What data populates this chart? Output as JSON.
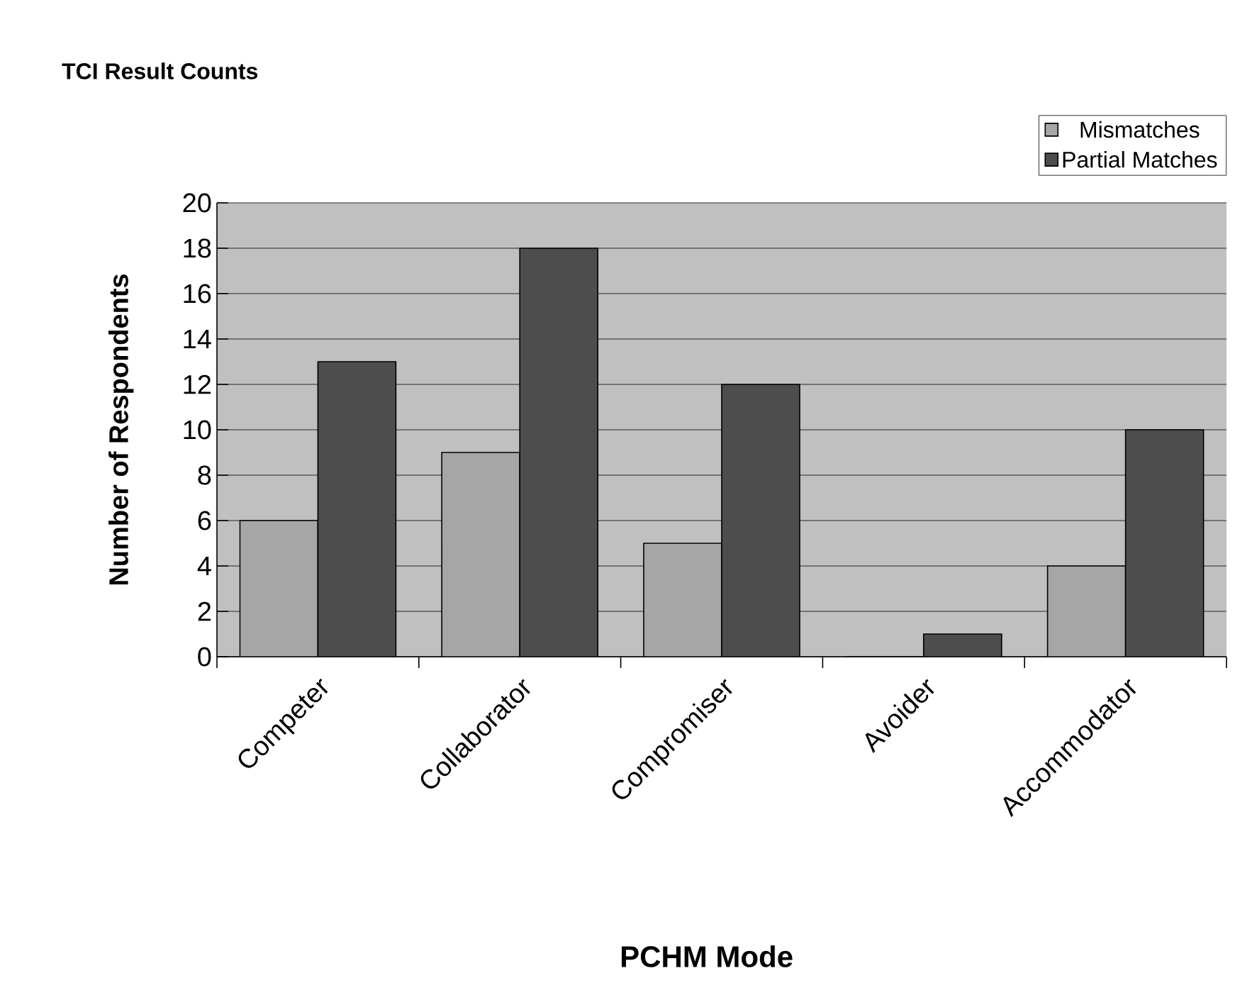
{
  "chart_data": {
    "type": "bar",
    "title": "TCI Result Counts",
    "xlabel": "PCHM Mode",
    "ylabel": "Number of Respondents",
    "categories": [
      "Competer",
      "Collaborator",
      "Compromiser",
      "Avoider",
      "Accommodator"
    ],
    "series": [
      {
        "name": "Mismatches",
        "color": "#a6a6a6",
        "values": [
          6,
          9,
          5,
          0,
          4
        ]
      },
      {
        "name": "Partial Matches",
        "color": "#4d4d4d",
        "values": [
          13,
          18,
          12,
          1,
          10
        ]
      }
    ],
    "ylim": [
      0,
      20
    ],
    "yticks": [
      0,
      2,
      4,
      6,
      8,
      10,
      12,
      14,
      16,
      18,
      20
    ],
    "grid": "y",
    "legend": "top right"
  }
}
